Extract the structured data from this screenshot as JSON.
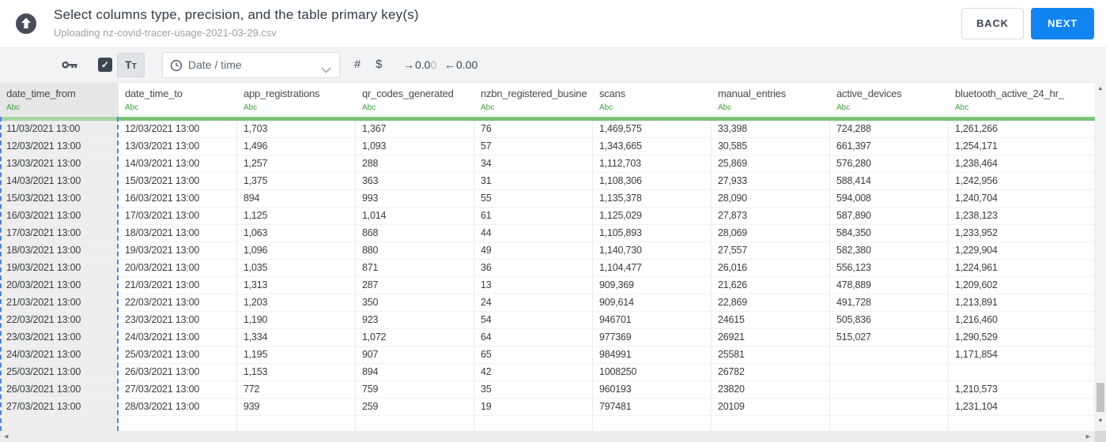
{
  "header": {
    "title": "Select columns type, precision, and the table primary key(s)",
    "subtitle": "Uploading nz-covid-tracer-usage-2021-03-29.csv",
    "back_label": "BACK",
    "next_label": "NEXT"
  },
  "toolbar": {
    "text_type_label": "Tt",
    "type_dropdown_value": "Date / time",
    "number_label": "#",
    "currency_label": "$",
    "precision_add": {
      "arrow": "→",
      "digits": "0.0",
      "faded_digit": "0"
    },
    "precision_remove": {
      "arrow": "←",
      "digits": "0.00"
    },
    "checkbox_checked": true
  },
  "table": {
    "columns": [
      {
        "name": "date_time_from",
        "type": "Abc",
        "selected": true
      },
      {
        "name": "date_time_to",
        "type": "Abc",
        "selected": false
      },
      {
        "name": "app_registrations",
        "type": "Abc",
        "selected": false
      },
      {
        "name": "qr_codes_generated",
        "type": "Abc",
        "selected": false
      },
      {
        "name": "nzbn_registered_busine",
        "type": "Abc",
        "selected": false
      },
      {
        "name": "scans",
        "type": "Abc",
        "selected": false
      },
      {
        "name": "manual_entries",
        "type": "Abc",
        "selected": false
      },
      {
        "name": "active_devices",
        "type": "Abc",
        "selected": false
      },
      {
        "name": "bluetooth_active_24_hr_",
        "type": "Abc",
        "selected": false
      }
    ],
    "rows": [
      [
        "11/03/2021 13:00",
        "12/03/2021 13:00",
        "1,703",
        "1,367",
        "76",
        "1,469,575",
        "33,398",
        "724,288",
        "1,261,266"
      ],
      [
        "12/03/2021 13:00",
        "13/03/2021 13:00",
        "1,496",
        "1,093",
        "57",
        "1,343,665",
        "30,585",
        "661,397",
        "1,254,171"
      ],
      [
        "13/03/2021 13:00",
        "14/03/2021 13:00",
        "1,257",
        "288",
        "34",
        "1,112,703",
        "25,869",
        "576,280",
        "1,238,464"
      ],
      [
        "14/03/2021 13:00",
        "15/03/2021 13:00",
        "1,375",
        "363",
        "31",
        "1,108,306",
        "27,933",
        "588,414",
        "1,242,956"
      ],
      [
        "15/03/2021 13:00",
        "16/03/2021 13:00",
        "894",
        "993",
        "55",
        "1,135,378",
        "28,090",
        "594,008",
        "1,240,704"
      ],
      [
        "16/03/2021 13:00",
        "17/03/2021 13:00",
        "1,125",
        "1,014",
        "61",
        "1,125,029",
        "27,873",
        "587,890",
        "1,238,123"
      ],
      [
        "17/03/2021 13:00",
        "18/03/2021 13:00",
        "1,063",
        "868",
        "44",
        "1,105,893",
        "28,069",
        "584,350",
        "1,233,952"
      ],
      [
        "18/03/2021 13:00",
        "19/03/2021 13:00",
        "1,096",
        "880",
        "49",
        "1,140,730",
        "27,557",
        "582,380",
        "1,229,904"
      ],
      [
        "19/03/2021 13:00",
        "20/03/2021 13:00",
        "1,035",
        "871",
        "36",
        "1,104,477",
        "26,016",
        "556,123",
        "1,224,961"
      ],
      [
        "20/03/2021 13:00",
        "21/03/2021 13:00",
        "1,313",
        "287",
        "13",
        "909,369",
        "21,626",
        "478,889",
        "1,209,602"
      ],
      [
        "21/03/2021 13:00",
        "22/03/2021 13:00",
        "1,203",
        "350",
        "24",
        "909,614",
        "22,869",
        "491,728",
        "1,213,891"
      ],
      [
        "22/03/2021 13:00",
        "23/03/2021 13:00",
        "1,190",
        "923",
        "54",
        "946701",
        "24615",
        "505,836",
        "1,216,460"
      ],
      [
        "23/03/2021 13:00",
        "24/03/2021 13:00",
        "1,334",
        "1,072",
        "64",
        "977369",
        "26921",
        "515,027",
        "1,290,529"
      ],
      [
        "24/03/2021 13:00",
        "25/03/2021 13:00",
        "1,195",
        "907",
        "65",
        "984991",
        "25581",
        "",
        "1,171,854"
      ],
      [
        "25/03/2021 13:00",
        "26/03/2021 13:00",
        "1,153",
        "894",
        "42",
        "1008250",
        "26782",
        "",
        ""
      ],
      [
        "26/03/2021 13:00",
        "27/03/2021 13:00",
        "772",
        "759",
        "35",
        "960193",
        "23820",
        "",
        "1,210,573"
      ],
      [
        "27/03/2021 13:00",
        "28/03/2021 13:00",
        "939",
        "259",
        "19",
        "797481",
        "20109",
        "",
        "1,231,104"
      ]
    ]
  },
  "colors": {
    "accent_blue": "#1084f0",
    "type_green": "#3aa23a",
    "underline_green": "#7ac47a",
    "underline_green_selected": "#a8d5a8",
    "selection_dash_blue": "#4d86d9",
    "selected_column_bg": "#ededee"
  }
}
